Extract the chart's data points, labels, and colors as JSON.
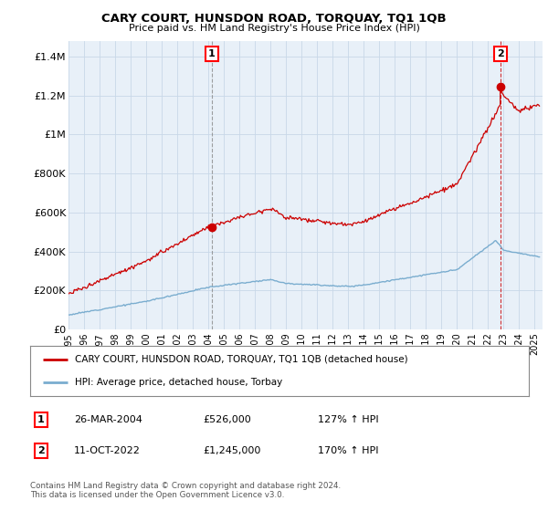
{
  "title": "CARY COURT, HUNSDON ROAD, TORQUAY, TQ1 1QB",
  "subtitle": "Price paid vs. HM Land Registry's House Price Index (HPI)",
  "ylabel_ticks": [
    "£0",
    "£200K",
    "£400K",
    "£600K",
    "£800K",
    "£1M",
    "£1.2M",
    "£1.4M"
  ],
  "ytick_values": [
    0,
    200000,
    400000,
    600000,
    800000,
    1000000,
    1200000,
    1400000
  ],
  "ylim": [
    0,
    1480000
  ],
  "red_line_color": "#cc0000",
  "blue_line_color": "#7aadcf",
  "plot_bg_color": "#e8f0f8",
  "point1_x": 2004.23,
  "point1_y": 526000,
  "point1_label": "1",
  "point2_x": 2022.78,
  "point2_y": 1245000,
  "point2_label": "2",
  "legend_line1": "CARY COURT, HUNSDON ROAD, TORQUAY, TQ1 1QB (detached house)",
  "legend_line2": "HPI: Average price, detached house, Torbay",
  "table_row1": [
    "1",
    "26-MAR-2004",
    "£526,000",
    "127% ↑ HPI"
  ],
  "table_row2": [
    "2",
    "11-OCT-2022",
    "£1,245,000",
    "170% ↑ HPI"
  ],
  "footer": "Contains HM Land Registry data © Crown copyright and database right 2024.\nThis data is licensed under the Open Government Licence v3.0.",
  "background_color": "#ffffff",
  "grid_color": "#c8d8e8",
  "xmin": 1995,
  "xmax": 2025.5
}
